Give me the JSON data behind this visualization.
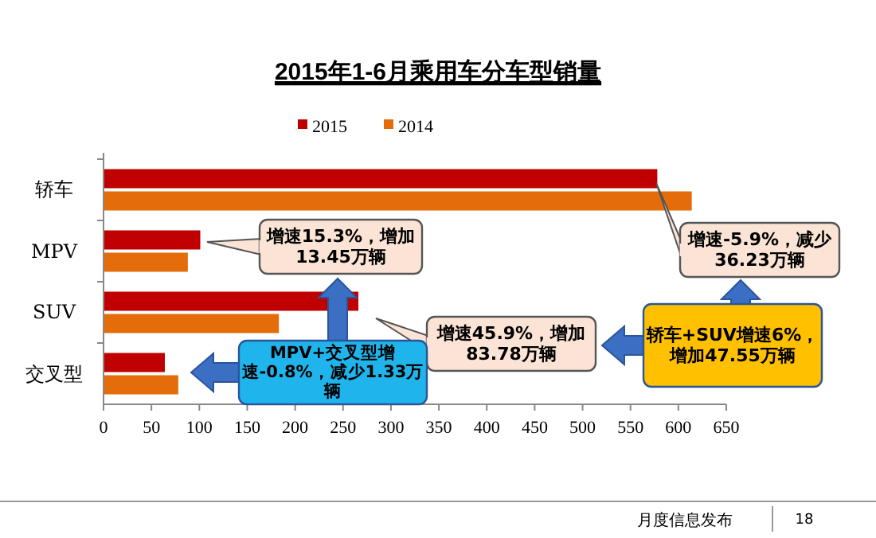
{
  "chart_data": {
    "type": "bar",
    "orientation": "horizontal",
    "title": "2015年1-6月乘用车分车型销量",
    "categories": [
      "轿车",
      "MPV",
      "SUV",
      "交叉型"
    ],
    "series": [
      {
        "name": "2015",
        "color": "#c00000",
        "values": [
          578,
          101,
          266,
          64
        ]
      },
      {
        "name": "2014",
        "color": "#e46c0a",
        "values": [
          614,
          88,
          183,
          78
        ]
      }
    ],
    "xlim": [
      0,
      650
    ],
    "xticks": [
      0,
      50,
      100,
      150,
      200,
      250,
      300,
      350,
      400,
      450,
      500,
      550,
      600,
      650
    ],
    "legend": "top",
    "grid": false,
    "annotations": [
      "增速15.3%，增加13.45万辆",
      "增速45.9%，增加83.78万辆",
      "增速-5.9%，减少36.23万辆",
      "MPV+交叉型增速-0.8%，减少1.33万辆",
      "轿车+SUV增速6%，增加47.55万辆",
      "月度信息发布",
      "18"
    ]
  }
}
